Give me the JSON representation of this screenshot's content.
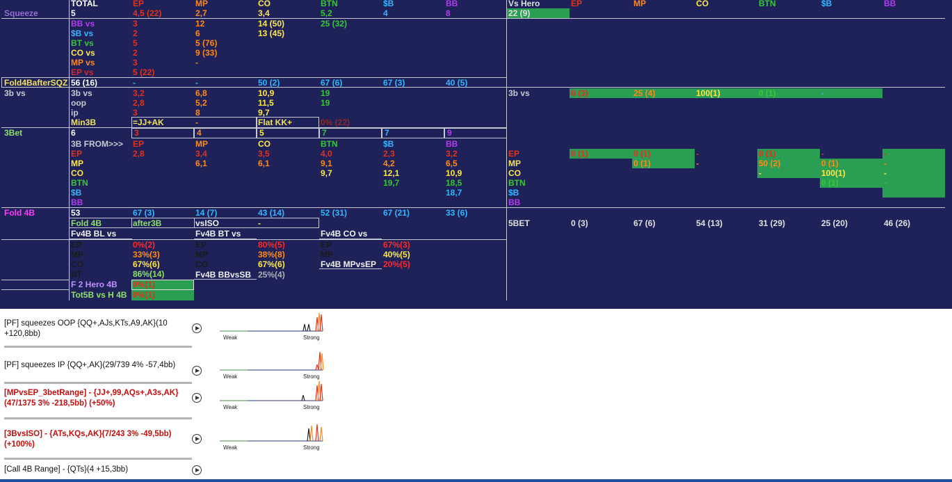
{
  "colors": {
    "bg": "#1f2159",
    "ep": "#e0331e",
    "mp": "#ff8a1a",
    "co": "#ffe84a",
    "btn": "#37c837",
    "sb": "#35b6ff",
    "bb": "#b43cf0",
    "white": "#ffffff",
    "green_box": "#2a9e52",
    "label_purple": "#9a6ad8",
    "label_yellow": "#f0e060",
    "label_green": "#8fe06a",
    "label_magenta": "#ff3cff",
    "label_grey": "#c8c8d0",
    "red": "#ff2a2a"
  },
  "header": {
    "total": "TOTAL",
    "ep": "EP",
    "mp": "MP",
    "co": "CO",
    "btn": "BTN",
    "sb": "$B",
    "bb": "BB"
  },
  "squeeze": {
    "label": "Squeeze",
    "total": "5",
    "ep": "4,5 (22)",
    "mp": "2,7",
    "co": "3,4",
    "btn": "5,2",
    "sb": "4",
    "bb": "8",
    "rows": [
      {
        "label": "BB vs",
        "ep": "3",
        "mp": "12",
        "co": "14 (50)",
        "btn": "25 (32)"
      },
      {
        "label": "$B vs",
        "ep": "2",
        "mp": "6",
        "co": "13 (45)"
      },
      {
        "label": "BT vs",
        "ep": "5",
        "mp": "5 (76)"
      },
      {
        "label": "CO vs",
        "ep": "2",
        "mp": "9 (33)"
      },
      {
        "label": "MP vs",
        "ep": "3",
        "mp": "-"
      },
      {
        "label": "EP vs",
        "ep": "5 (22)"
      }
    ]
  },
  "fold4b_sqz": {
    "label": "Fold4BafterSQZ",
    "total": "56 (16)",
    "ep": "-",
    "mp": "-",
    "co": "50 (2)",
    "btn": "67 (6)",
    "sb": "67 (3)",
    "bb": "40 (5)"
  },
  "threebet_vs": {
    "label": "3b vs",
    "rows": [
      {
        "label": "3b vs",
        "ep": "3,2",
        "mp": "6,8",
        "co": "10,9",
        "btn": "19"
      },
      {
        "label": "oop",
        "ep": "2,8",
        "mp": "5,2",
        "co": "11,5",
        "btn": "19"
      },
      {
        "label": "ip",
        "ep": "3",
        "mp": "8",
        "co": "9,7"
      }
    ],
    "min3b_label": "Min3B",
    "min3b_range": "=JJ+AK",
    "min3b_val": "-",
    "flat_label": "Flat KK+",
    "flat_val": "0% (22)"
  },
  "threebet": {
    "label": "3Bet",
    "total": "6",
    "ep": "3",
    "mp": "4",
    "co": "5",
    "btn": "7",
    "sb": "7",
    "bb": "9"
  },
  "from3b": {
    "title": "3B FROM>>>",
    "cols": [
      "EP",
      "MP",
      "CO",
      "BTN",
      "$B",
      "BB"
    ],
    "rows": [
      {
        "label": "EP",
        "vals": [
          "2,8",
          "3,4",
          "3,5",
          "4,0",
          "2,3",
          "3,2"
        ]
      },
      {
        "label": "MP",
        "vals": [
          "",
          "6,1",
          "6,1",
          "9,1",
          "4,2",
          "6,5"
        ]
      },
      {
        "label": "CO",
        "vals": [
          "",
          "",
          "",
          "9,7",
          "12,1",
          "10,9"
        ]
      },
      {
        "label": "BTN",
        "vals": [
          "",
          "",
          "",
          "",
          "19,7",
          "18,5"
        ]
      },
      {
        "label": "$B",
        "vals": [
          "",
          "",
          "",
          "",
          "",
          "18,7"
        ]
      },
      {
        "label": "BB",
        "vals": [
          "",
          "",
          "",
          "",
          "",
          ""
        ]
      }
    ]
  },
  "fold4b": {
    "label": "Fold 4B",
    "total": "53",
    "ep": "67 (3)",
    "mp": "14 (7)",
    "co": "43 (14)",
    "btn": "52 (31)",
    "sb": "67 (21)",
    "bb": "33 (6)"
  },
  "fold4b_sub": {
    "fold4b": "Fold 4B",
    "after3b": "after3B",
    "vsiso": "vsISO",
    "vsiso_val": "-"
  },
  "fv4b": {
    "bl_title": "Fv4B BL vs",
    "bt_title": "Fv4B BT vs",
    "co_title": "Fv4B CO vs",
    "bl": [
      {
        "p": "EP",
        "v": "0%(2)"
      },
      {
        "p": "MP",
        "v": "33%(3)"
      },
      {
        "p": "CO",
        "v": "67%(6)"
      },
      {
        "p": "BT",
        "v": "86%(14)"
      }
    ],
    "bt": [
      {
        "p": "EP",
        "v": "80%(5)"
      },
      {
        "p": "MP",
        "v": "38%(8)"
      },
      {
        "p": "CO",
        "v": "67%(6)"
      }
    ],
    "co": [
      {
        "p": "EP",
        "v": "67%(3)"
      },
      {
        "p": "MP",
        "v": "40%(5)"
      }
    ],
    "bbvssb_label": "Fv4B BBvsSB",
    "bbvssb_val": "25%(4)",
    "mpvsep_label": "Fv4B MPvsEP",
    "mpvsep_val": "20%(5)",
    "f2hero_label": "F 2 Hero 4B",
    "f2hero_val": "0%(1)",
    "tot5b_label": "Tot5B vs H 4B",
    "tot5b_val": "0%(1)"
  },
  "vs_hero": {
    "title": "Vs Hero",
    "value": "22 (9)",
    "cols": [
      "EP",
      "MP",
      "CO",
      "BTN",
      "$B",
      "BB"
    ],
    "threeb_label": "3b vs",
    "threeb": [
      "0 (3)",
      "25 (4)",
      "100(1)",
      "0 (1)",
      "-"
    ],
    "rows": [
      {
        "label": "EP",
        "vals": [
          "0 (1)",
          "0 (1)",
          "-",
          "0 (1)",
          "-",
          "-"
        ]
      },
      {
        "label": "MP",
        "vals": [
          "",
          "0 (1)",
          "-",
          "50 (2)",
          "0 (1)",
          "-"
        ]
      },
      {
        "label": "CO",
        "vals": [
          "",
          "",
          "",
          "-",
          "100(1)",
          "-"
        ]
      },
      {
        "label": "BTN",
        "vals": [
          "",
          "",
          "",
          "",
          "0 (1)",
          "-"
        ]
      },
      {
        "label": "$B",
        "vals": [
          "",
          "",
          "",
          "",
          "",
          ""
        ]
      },
      {
        "label": "BB",
        "vals": [
          "",
          "",
          "",
          "",
          "",
          ""
        ]
      }
    ],
    "fivebet_label": "5BET",
    "fivebet": [
      "0 (3)",
      "67 (6)",
      "54 (13)",
      "31 (29)",
      "25 (20)",
      "46 (26)"
    ]
  },
  "popups": [
    {
      "text": "[PF] squeezes OOP {QQ+,AJs,KTs,A9,AK}(10 +120,8bb)",
      "red": false
    },
    {
      "text": "[PF] squeezes IP {QQ+,AK}(29/739 4% -57,4bb)",
      "red": false
    },
    {
      "text": "[MPvsEP_3betRange] - {JJ+,99,AQs+,A3s,AK}(47/1375 3% -218,5bb) (+50%)",
      "red": true
    },
    {
      "text": "[3BvsISO] - {ATs,KQs,AK}(7/243 3% -49,5bb) (+100%)",
      "red": true
    },
    {
      "text": "[Call 4B Range] - {QTs}(4 +15,3bb)",
      "red": false
    }
  ],
  "graph_labels": {
    "weak": "Weak",
    "strong": "Strong"
  }
}
